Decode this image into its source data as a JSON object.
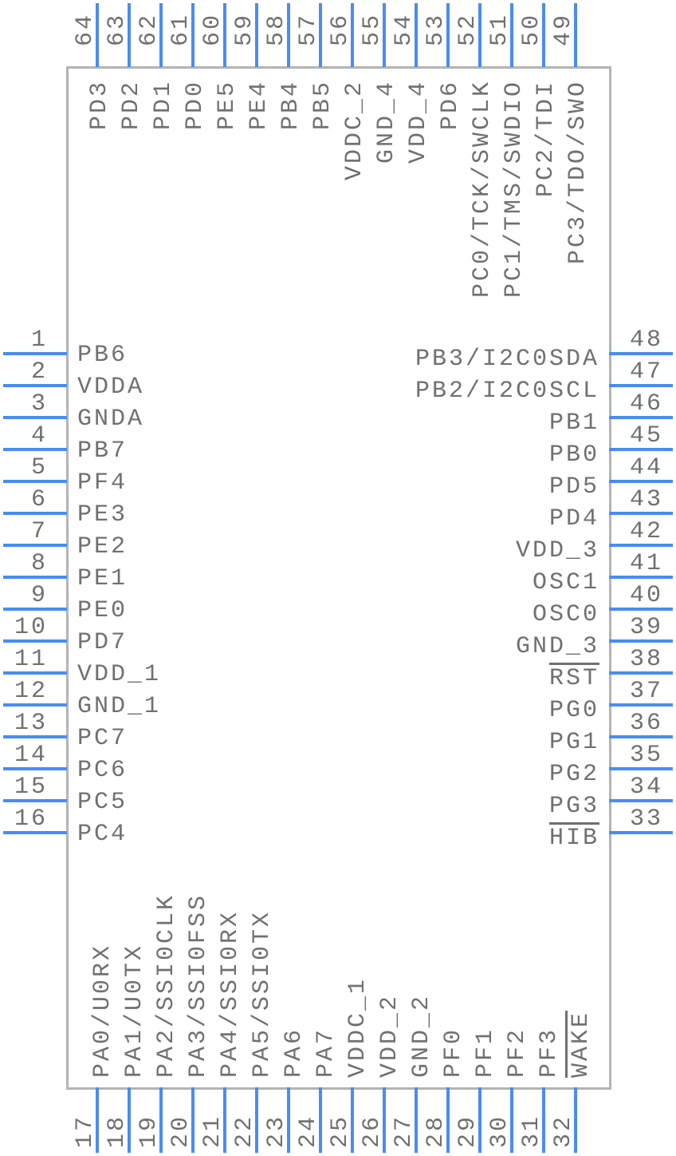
{
  "colors": {
    "pin_line": "#4a8cf0",
    "body_border": "#b4b4b4",
    "text": "#707070"
  },
  "pins": {
    "left": [
      {
        "num": "1",
        "label": "PB6"
      },
      {
        "num": "2",
        "label": "VDDA"
      },
      {
        "num": "3",
        "label": "GNDA"
      },
      {
        "num": "4",
        "label": "PB7"
      },
      {
        "num": "5",
        "label": "PF4"
      },
      {
        "num": "6",
        "label": "PE3"
      },
      {
        "num": "7",
        "label": "PE2"
      },
      {
        "num": "8",
        "label": "PE1"
      },
      {
        "num": "9",
        "label": "PE0"
      },
      {
        "num": "10",
        "label": "PD7"
      },
      {
        "num": "11",
        "label": "VDD_1"
      },
      {
        "num": "12",
        "label": "GND_1"
      },
      {
        "num": "13",
        "label": "PC7"
      },
      {
        "num": "14",
        "label": "PC6"
      },
      {
        "num": "15",
        "label": "PC5"
      },
      {
        "num": "16",
        "label": "PC4"
      }
    ],
    "bottom": [
      {
        "num": "17",
        "label": "PA0/U0RX"
      },
      {
        "num": "18",
        "label": "PA1/U0TX"
      },
      {
        "num": "19",
        "label": "PA2/SSI0CLK"
      },
      {
        "num": "20",
        "label": "PA3/SSI0FSS"
      },
      {
        "num": "21",
        "label": "PA4/SSI0RX"
      },
      {
        "num": "22",
        "label": "PA5/SSI0TX"
      },
      {
        "num": "23",
        "label": "PA6"
      },
      {
        "num": "24",
        "label": "PA7"
      },
      {
        "num": "25",
        "label": "VDDC_1"
      },
      {
        "num": "26",
        "label": "VDD_2"
      },
      {
        "num": "27",
        "label": "GND_2"
      },
      {
        "num": "28",
        "label": "PF0"
      },
      {
        "num": "29",
        "label": "PF1"
      },
      {
        "num": "30",
        "label": "PF2"
      },
      {
        "num": "31",
        "label": "PF3"
      },
      {
        "num": "32",
        "label": "WAKE",
        "overline": true
      }
    ],
    "right": [
      {
        "num": "48",
        "label": "PB3/I2C0SDA"
      },
      {
        "num": "47",
        "label": "PB2/I2C0SCL"
      },
      {
        "num": "46",
        "label": "PB1"
      },
      {
        "num": "45",
        "label": "PB0"
      },
      {
        "num": "44",
        "label": "PD5"
      },
      {
        "num": "43",
        "label": "PD4"
      },
      {
        "num": "42",
        "label": "VDD_3"
      },
      {
        "num": "41",
        "label": "OSC1"
      },
      {
        "num": "40",
        "label": "OSC0"
      },
      {
        "num": "39",
        "label": "GND_3"
      },
      {
        "num": "38",
        "label": "RST",
        "overline": true
      },
      {
        "num": "37",
        "label": "PG0"
      },
      {
        "num": "36",
        "label": "PG1"
      },
      {
        "num": "35",
        "label": "PG2"
      },
      {
        "num": "34",
        "label": "PG3"
      },
      {
        "num": "33",
        "label": "HIB",
        "overline": true
      }
    ],
    "top": [
      {
        "num": "64",
        "label": "PD3"
      },
      {
        "num": "63",
        "label": "PD2"
      },
      {
        "num": "62",
        "label": "PD1"
      },
      {
        "num": "61",
        "label": "PD0"
      },
      {
        "num": "60",
        "label": "PE5"
      },
      {
        "num": "59",
        "label": "PE4"
      },
      {
        "num": "58",
        "label": "PB4"
      },
      {
        "num": "57",
        "label": "PB5"
      },
      {
        "num": "56",
        "label": "VDDC_2"
      },
      {
        "num": "55",
        "label": "GND_4"
      },
      {
        "num": "54",
        "label": "VDD_4"
      },
      {
        "num": "53",
        "label": "PD6"
      },
      {
        "num": "52",
        "label": "PC0/TCK/SWCLK"
      },
      {
        "num": "51",
        "label": "PC1/TMS/SWDIO"
      },
      {
        "num": "50",
        "label": "PC2/TDI"
      },
      {
        "num": "49",
        "label": "PC3/TDO/SWO"
      }
    ]
  }
}
